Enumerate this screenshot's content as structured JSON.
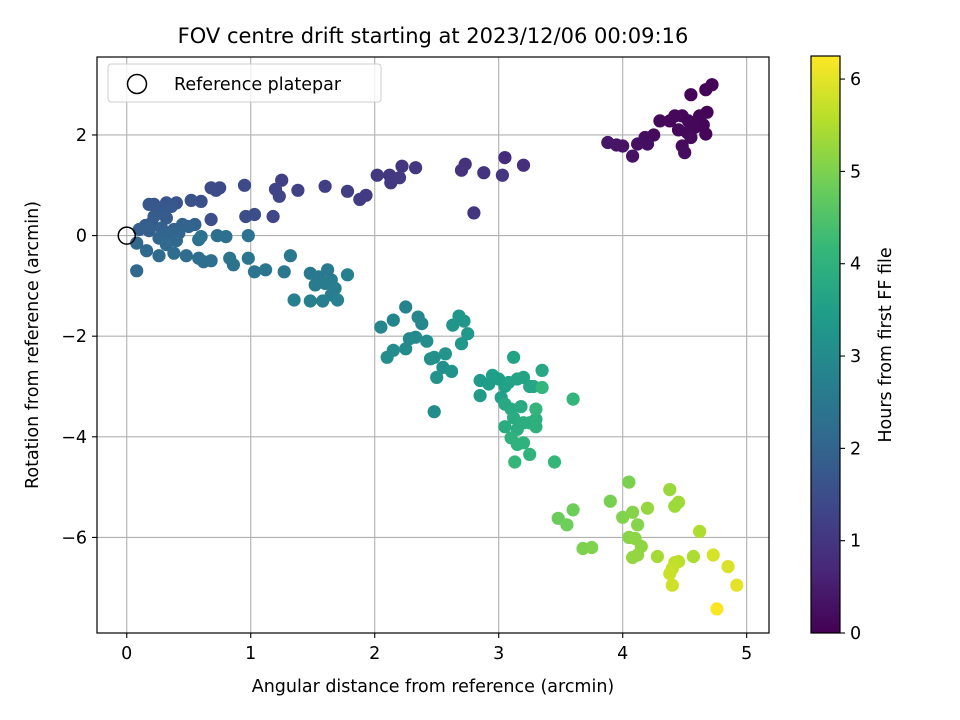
{
  "chart_data": {
    "type": "scatter",
    "title": "FOV centre drift starting at 2023/12/06 00:09:16",
    "xlabel": "Angular distance from reference (arcmin)",
    "ylabel": "Rotation from reference (arcmin)",
    "xlim": [
      -0.24,
      5.18
    ],
    "ylim": [
      -7.9,
      3.55
    ],
    "xticks": [
      0,
      1,
      2,
      3,
      4,
      5
    ],
    "xtick_labels": [
      "0",
      "1",
      "2",
      "3",
      "4",
      "5"
    ],
    "yticks": [
      -6,
      -4,
      -2,
      0,
      2
    ],
    "ytick_labels": [
      "−6",
      "−4",
      "−2",
      "0",
      "2"
    ],
    "grid": true,
    "legend_position": "top-left",
    "legend": [
      {
        "label": "Reference platepar",
        "marker": "open-circle",
        "x": 0,
        "y": 0
      }
    ],
    "colorbar": {
      "label": "Hours from first FF file",
      "colormap": "viridis",
      "range": [
        0,
        6.25
      ],
      "ticks": [
        0,
        1,
        2,
        3,
        4,
        5,
        6
      ],
      "tick_labels": [
        "0",
        "1",
        "2",
        "3",
        "4",
        "5",
        "6"
      ],
      "stops": [
        "#440154",
        "#482878",
        "#3e4989",
        "#31688e",
        "#26828e",
        "#1f9e89",
        "#35b779",
        "#6ece58",
        "#b5de2b",
        "#fde725"
      ]
    },
    "points": [
      [
        4.72,
        3.0,
        0.05
      ],
      [
        4.67,
        2.9,
        0.06
      ],
      [
        4.55,
        2.8,
        0.08
      ],
      [
        4.68,
        2.45,
        0.07
      ],
      [
        4.62,
        2.38,
        0.09
      ],
      [
        4.48,
        2.38,
        0.1
      ],
      [
        4.42,
        2.38,
        0.12
      ],
      [
        4.38,
        2.28,
        0.13
      ],
      [
        4.53,
        2.28,
        0.11
      ],
      [
        4.65,
        2.2,
        0.09
      ],
      [
        4.58,
        2.15,
        0.1
      ],
      [
        4.45,
        2.1,
        0.14
      ],
      [
        4.52,
        2.05,
        0.15
      ],
      [
        4.67,
        2.02,
        0.08
      ],
      [
        4.3,
        2.28,
        0.16
      ],
      [
        4.55,
        1.95,
        0.17
      ],
      [
        4.25,
        2.0,
        0.2
      ],
      [
        4.18,
        1.95,
        0.22
      ],
      [
        4.2,
        1.82,
        0.25
      ],
      [
        4.48,
        1.78,
        0.18
      ],
      [
        4.12,
        1.82,
        0.27
      ],
      [
        4.08,
        1.58,
        0.3
      ],
      [
        4.5,
        1.65,
        0.21
      ],
      [
        4.0,
        1.78,
        0.32
      ],
      [
        3.95,
        1.8,
        0.35
      ],
      [
        3.88,
        1.85,
        0.38
      ],
      [
        3.05,
        1.55,
        0.8
      ],
      [
        3.2,
        1.4,
        0.85
      ],
      [
        2.73,
        1.42,
        0.9
      ],
      [
        2.7,
        1.3,
        0.92
      ],
      [
        2.88,
        1.25,
        0.95
      ],
      [
        3.03,
        1.2,
        0.98
      ],
      [
        2.8,
        0.45,
        0.96
      ],
      [
        2.22,
        1.38,
        1.0
      ],
      [
        2.33,
        1.35,
        1.02
      ],
      [
        2.02,
        1.2,
        1.05
      ],
      [
        2.12,
        1.2,
        1.03
      ],
      [
        2.2,
        1.15,
        1.07
      ],
      [
        2.13,
        1.05,
        1.08
      ],
      [
        1.93,
        0.8,
        1.1
      ],
      [
        1.88,
        0.72,
        1.12
      ],
      [
        1.78,
        0.88,
        1.15
      ],
      [
        1.6,
        0.98,
        1.18
      ],
      [
        1.25,
        1.1,
        1.2
      ],
      [
        1.38,
        0.9,
        1.25
      ],
      [
        1.2,
        0.92,
        1.28
      ],
      [
        1.23,
        0.78,
        1.3
      ],
      [
        1.18,
        0.38,
        1.35
      ],
      [
        0.95,
        1.0,
        1.38
      ],
      [
        0.75,
        0.95,
        1.4
      ],
      [
        0.72,
        0.9,
        1.42
      ],
      [
        0.68,
        0.95,
        1.45
      ],
      [
        1.03,
        0.42,
        1.48
      ],
      [
        0.96,
        0.38,
        1.5
      ],
      [
        0.68,
        0.32,
        1.52
      ],
      [
        0.6,
        0.68,
        1.55
      ],
      [
        0.52,
        0.7,
        1.58
      ],
      [
        0.4,
        0.65,
        1.62
      ],
      [
        0.32,
        0.65,
        1.65
      ],
      [
        0.22,
        0.62,
        1.68
      ],
      [
        0.18,
        0.62,
        1.7
      ],
      [
        0.27,
        0.52,
        1.72
      ],
      [
        0.36,
        0.58,
        1.75
      ],
      [
        0.28,
        0.45,
        1.78
      ],
      [
        0.32,
        0.35,
        1.8
      ],
      [
        0.22,
        0.38,
        1.82
      ],
      [
        0.2,
        0.25,
        1.84
      ],
      [
        0.15,
        0.2,
        1.86
      ],
      [
        0.1,
        0.12,
        1.88
      ],
      [
        0.18,
        0.1,
        1.9
      ],
      [
        0.28,
        0.15,
        1.92
      ],
      [
        0.38,
        0.12,
        1.94
      ],
      [
        0.45,
        0.22,
        1.96
      ],
      [
        0.55,
        0.22,
        1.98
      ],
      [
        0.5,
        0.18,
        2.0
      ],
      [
        0.42,
        0.05,
        2.02
      ],
      [
        0.33,
        0.02,
        2.04
      ],
      [
        0.26,
        -0.05,
        2.06
      ],
      [
        0.4,
        -0.1,
        2.08
      ],
      [
        0.08,
        -0.15,
        2.1
      ],
      [
        0.16,
        -0.3,
        2.12
      ],
      [
        0.32,
        -0.18,
        2.14
      ],
      [
        0.26,
        -0.4,
        2.16
      ],
      [
        0.38,
        -0.35,
        2.18
      ],
      [
        0.48,
        -0.4,
        2.2
      ],
      [
        0.58,
        -0.45,
        2.22
      ],
      [
        0.62,
        -0.52,
        2.24
      ],
      [
        0.68,
        -0.5,
        2.26
      ],
      [
        0.73,
        0.0,
        2.28
      ],
      [
        0.58,
        -0.08,
        2.3
      ],
      [
        0.8,
        -0.02,
        2.32
      ],
      [
        0.6,
        -0.02,
        2.34
      ],
      [
        0.98,
        0.0,
        2.36
      ],
      [
        0.83,
        -0.45,
        2.38
      ],
      [
        0.86,
        -0.58,
        2.4
      ],
      [
        0.98,
        -0.45,
        2.42
      ],
      [
        1.03,
        -0.72,
        2.44
      ],
      [
        1.12,
        -0.68,
        2.46
      ],
      [
        1.27,
        -0.72,
        2.48
      ],
      [
        1.32,
        -0.4,
        2.5
      ],
      [
        1.48,
        -0.75,
        2.52
      ],
      [
        1.55,
        -0.82,
        2.54
      ],
      [
        1.62,
        -0.68,
        2.56
      ],
      [
        1.52,
        -0.98,
        2.58
      ],
      [
        1.6,
        -0.95,
        2.6
      ],
      [
        1.65,
        -0.88,
        2.62
      ],
      [
        1.68,
        -1.05,
        2.64
      ],
      [
        1.65,
        -1.18,
        2.66
      ],
      [
        1.58,
        -1.3,
        2.68
      ],
      [
        1.48,
        -1.3,
        2.7
      ],
      [
        1.35,
        -1.28,
        2.72
      ],
      [
        1.7,
        -1.28,
        2.74
      ],
      [
        1.78,
        -0.78,
        2.76
      ],
      [
        0.08,
        -0.7,
        2.05
      ],
      [
        2.25,
        -1.42,
        2.8
      ],
      [
        2.15,
        -1.68,
        2.85
      ],
      [
        2.05,
        -1.82,
        2.88
      ],
      [
        2.35,
        -1.62,
        2.9
      ],
      [
        2.38,
        -1.75,
        2.92
      ],
      [
        2.28,
        -2.05,
        2.95
      ],
      [
        2.33,
        -2.02,
        2.97
      ],
      [
        2.25,
        -2.25,
        3.0
      ],
      [
        2.15,
        -2.28,
        3.02
      ],
      [
        2.1,
        -2.42,
        3.05
      ],
      [
        2.42,
        -2.1,
        3.07
      ],
      [
        2.45,
        -2.45,
        3.1
      ],
      [
        2.48,
        -2.42,
        3.12
      ],
      [
        2.55,
        -2.62,
        3.15
      ],
      [
        2.5,
        -2.82,
        3.17
      ],
      [
        2.62,
        -2.7,
        3.2
      ],
      [
        2.57,
        -2.35,
        3.22
      ],
      [
        2.63,
        -1.78,
        3.25
      ],
      [
        2.68,
        -1.6,
        3.27
      ],
      [
        2.72,
        -1.7,
        3.3
      ],
      [
        2.75,
        -1.95,
        3.32
      ],
      [
        2.7,
        -2.15,
        3.35
      ],
      [
        2.48,
        -3.5,
        3.05
      ],
      [
        2.85,
        -2.88,
        3.4
      ],
      [
        2.85,
        -3.18,
        3.42
      ],
      [
        2.92,
        -2.95,
        3.45
      ],
      [
        2.95,
        -2.78,
        3.48
      ],
      [
        3.0,
        -2.85,
        3.5
      ],
      [
        3.02,
        -3.22,
        3.52
      ],
      [
        3.05,
        -3.0,
        3.55
      ],
      [
        3.08,
        -2.92,
        3.57
      ],
      [
        3.12,
        -2.42,
        3.6
      ],
      [
        3.15,
        -2.85,
        3.62
      ],
      [
        3.2,
        -2.82,
        3.65
      ],
      [
        3.25,
        -3.0,
        3.67
      ],
      [
        3.28,
        -3.0,
        3.7
      ],
      [
        3.35,
        -2.68,
        3.72
      ],
      [
        3.05,
        -3.35,
        3.75
      ],
      [
        3.1,
        -3.45,
        3.77
      ],
      [
        3.18,
        -3.4,
        3.8
      ],
      [
        3.12,
        -3.62,
        3.82
      ],
      [
        3.05,
        -3.8,
        3.85
      ],
      [
        3.15,
        -3.85,
        3.87
      ],
      [
        3.2,
        -3.72,
        3.9
      ],
      [
        3.25,
        -3.72,
        3.92
      ],
      [
        3.3,
        -3.65,
        3.94
      ],
      [
        3.3,
        -3.8,
        3.96
      ],
      [
        3.1,
        -4.02,
        3.98
      ],
      [
        3.15,
        -4.15,
        4.0
      ],
      [
        3.2,
        -4.12,
        4.02
      ],
      [
        3.25,
        -4.35,
        4.05
      ],
      [
        3.3,
        -3.45,
        4.08
      ],
      [
        3.35,
        -3.02,
        4.1
      ],
      [
        3.13,
        -4.5,
        4.12
      ],
      [
        3.45,
        -4.5,
        4.15
      ],
      [
        3.6,
        -3.25,
        4.1
      ],
      [
        3.48,
        -5.62,
        4.8
      ],
      [
        3.55,
        -5.75,
        4.85
      ],
      [
        3.6,
        -5.45,
        4.82
      ],
      [
        3.68,
        -6.22,
        5.0
      ],
      [
        3.75,
        -6.2,
        5.02
      ],
      [
        3.9,
        -5.28,
        4.95
      ],
      [
        4.0,
        -5.6,
        5.05
      ],
      [
        4.05,
        -4.9,
        4.98
      ],
      [
        4.08,
        -5.5,
        5.08
      ],
      [
        4.12,
        -5.75,
        5.1
      ],
      [
        4.05,
        -6.0,
        5.12
      ],
      [
        4.1,
        -6.02,
        5.15
      ],
      [
        4.15,
        -6.18,
        5.18
      ],
      [
        4.12,
        -6.35,
        5.2
      ],
      [
        4.08,
        -6.4,
        5.22
      ],
      [
        4.2,
        -5.42,
        5.25
      ],
      [
        4.38,
        -5.05,
        5.3
      ],
      [
        4.45,
        -5.3,
        5.35
      ],
      [
        4.42,
        -5.38,
        5.33
      ],
      [
        4.28,
        -6.38,
        5.4
      ],
      [
        4.57,
        -6.38,
        5.45
      ],
      [
        4.62,
        -5.88,
        5.5
      ],
      [
        4.45,
        -6.48,
        5.6
      ],
      [
        4.42,
        -6.5,
        5.65
      ],
      [
        4.4,
        -6.62,
        5.7
      ],
      [
        4.38,
        -6.72,
        5.75
      ],
      [
        4.4,
        -6.95,
        5.8
      ],
      [
        4.73,
        -6.35,
        5.85
      ],
      [
        4.85,
        -6.58,
        5.9
      ],
      [
        4.92,
        -6.95,
        6.0
      ],
      [
        4.76,
        -7.42,
        6.2
      ]
    ]
  }
}
